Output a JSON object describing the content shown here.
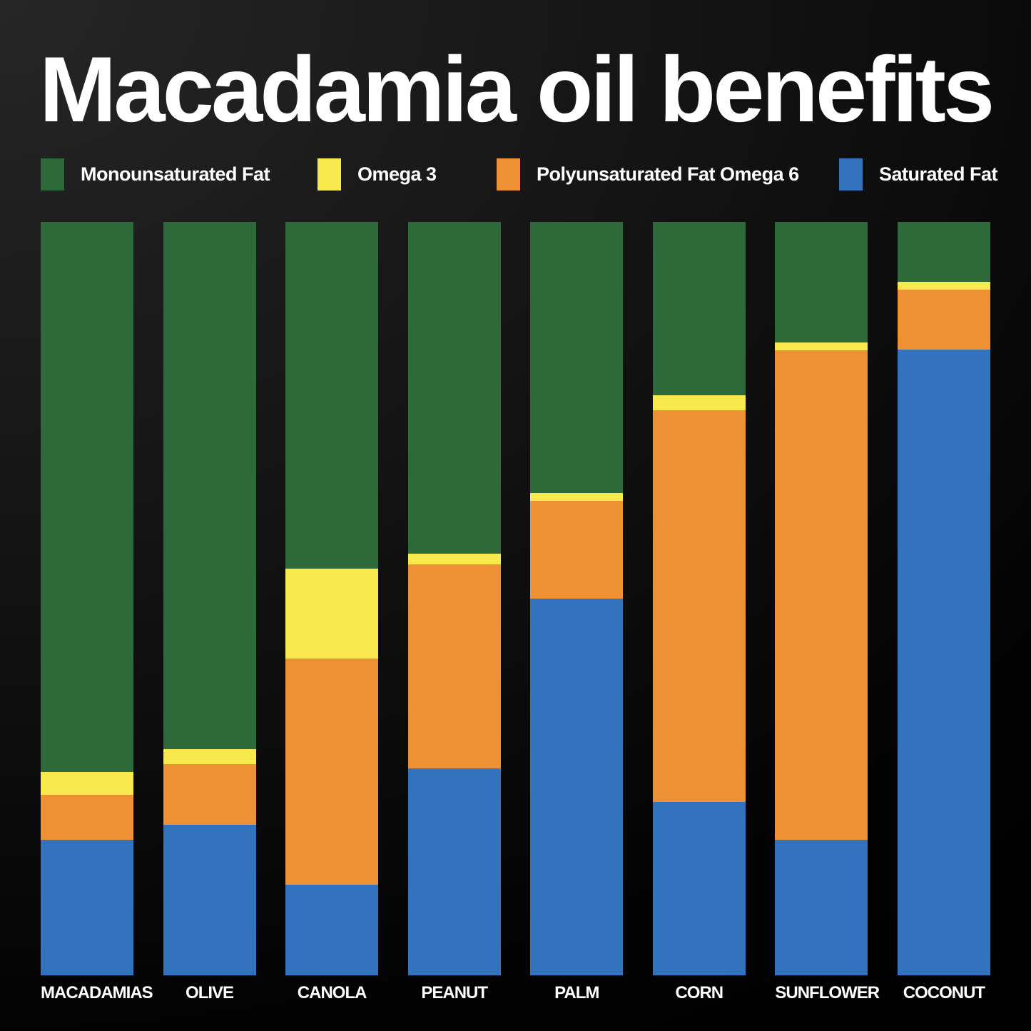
{
  "title": "Macadamia oil benefits",
  "colors": {
    "background_dark": "#000000",
    "background_light_corner": "#262626",
    "text": "#ffffff",
    "monounsaturated": "#2e6939",
    "omega3": "#f8e94e",
    "omega6": "#ee9134",
    "saturated": "#3373bd"
  },
  "chart_data": {
    "type": "bar",
    "stacked": true,
    "units": "percent",
    "title": "Macadamia oil benefits",
    "legend_position": "top",
    "grid": false,
    "ylim": [
      0,
      100
    ],
    "segment_order_top_to_bottom": [
      "Monounsaturated Fat",
      "Omega 3",
      "Polyunsaturated Fat Omega 6",
      "Saturated Fat"
    ],
    "categories": [
      "MACADAMIAS",
      "OLIVE",
      "CANOLA",
      "PEANUT",
      "PALM",
      "CORN",
      "SUNFLOWER",
      "COCONUT"
    ],
    "series": [
      {
        "name": "Monounsaturated Fat",
        "color": "#2e6939",
        "values": [
          73,
          70,
          46,
          44,
          36,
          23,
          16,
          8
        ]
      },
      {
        "name": "Omega 3",
        "color": "#f8e94e",
        "values": [
          3,
          2,
          12,
          1.5,
          1,
          2,
          1,
          1
        ]
      },
      {
        "name": "Polyunsaturated Fat Omega 6",
        "color": "#ee9134",
        "values": [
          6,
          8,
          30,
          27,
          13,
          52,
          65,
          8
        ]
      },
      {
        "name": "Saturated Fat",
        "color": "#3373bd",
        "values": [
          18,
          20,
          12,
          27.5,
          50,
          23,
          18,
          83
        ]
      }
    ]
  }
}
